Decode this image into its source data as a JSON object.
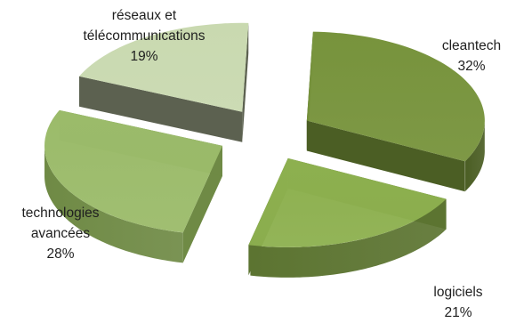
{
  "chart_data": {
    "type": "pie",
    "style": "3d-exploded",
    "categories": [
      "cleantech",
      "logiciels",
      "technologies avancées",
      "réseaux et télécommunications"
    ],
    "values": [
      32,
      21,
      28,
      19
    ],
    "labels": [
      {
        "lines": [
          "cleantech",
          "32%"
        ]
      },
      {
        "lines": [
          "logiciels",
          "21%"
        ]
      },
      {
        "lines": [
          "technologies",
          "avancées",
          "28%"
        ]
      },
      {
        "lines": [
          "réseaux et",
          "télécommunications",
          "19%"
        ]
      }
    ],
    "colors": {
      "top": [
        "#77933c",
        "#8db04f",
        "#9bbb6a",
        "#c9d9b0"
      ],
      "side": [
        "#4b5e24",
        "#5c7431",
        "#6f8a45",
        "#5c6150"
      ]
    },
    "legend": "none",
    "title": ""
  }
}
